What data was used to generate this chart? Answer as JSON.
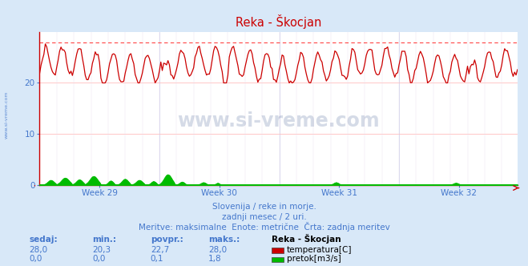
{
  "title": "Reka - Škocjan",
  "title_color": "#cc0000",
  "bg_color": "#d8e8f8",
  "plot_bg_color": "#ffffff",
  "grid_color": "#ffb0b0",
  "grid_color_v": "#d0d0ff",
  "axis_color": "#cc0000",
  "text_color": "#4477cc",
  "ylim": [
    0,
    30
  ],
  "yticks": [
    0,
    10,
    20
  ],
  "x_weeks": [
    "Week 29",
    "Week 30",
    "Week 31",
    "Week 32"
  ],
  "n_points": 336,
  "temp_min": 20.3,
  "temp_max": 28.0,
  "temp_mean": 22.7,
  "temp_color": "#cc0000",
  "flow_color": "#00bb00",
  "flow_max_real": 1.8,
  "axis_max": 30,
  "dashed_line_y": 28.0,
  "dashed_line_color": "#ff4444",
  "watermark_text": "www.si-vreme.com",
  "sub_text1": "Slovenija / reke in morje.",
  "sub_text2": "zadnji mesec / 2 uri.",
  "sub_text3": "Meritve: maksimalne  Enote: metrične  Črta: zadnja meritev",
  "legend_title": "Reka - Škocjan",
  "legend_temp_label": "temperatura[C]",
  "legend_flow_label": "pretok[m3/s]",
  "stats_headers": [
    "sedaj:",
    "min.:",
    "povpr.:",
    "maks.:"
  ],
  "stats_temp": [
    "28,0",
    "20,3",
    "22,7",
    "28,0"
  ],
  "stats_flow": [
    "0,0",
    "0,0",
    "0,1",
    "1,8"
  ],
  "sidebar_text": "www.si-vreme.com",
  "figsize": [
    6.59,
    3.32
  ],
  "dpi": 100
}
